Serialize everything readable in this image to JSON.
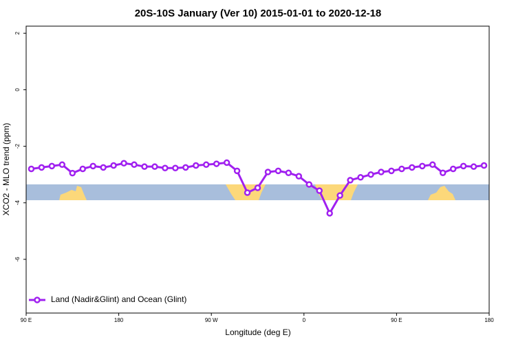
{
  "chart_data": {
    "type": "line",
    "title": "20S-10S January (Ver 10)   2015-01-01 to 2020-12-18",
    "x_label": "Longitude (deg E)",
    "y_label": "XCO2 - MLO trend (ppm)",
    "x": [
      95,
      105,
      115,
      125,
      135,
      145,
      155,
      165,
      175,
      185,
      195,
      205,
      215,
      225,
      235,
      245,
      255,
      265,
      275,
      285,
      295,
      305,
      315,
      325,
      335,
      345,
      355,
      365,
      375,
      385,
      395,
      405,
      415,
      425,
      435,
      445,
      455,
      465,
      475,
      485,
      495,
      505,
      515,
      525,
      535
    ],
    "series": [
      {
        "name": "Land (Nadir&Glint) and Ocean (Glint)",
        "color": "#a020f0",
        "values": [
          -2.8,
          -2.75,
          -2.7,
          -2.65,
          -2.95,
          -2.8,
          -2.7,
          -2.75,
          -2.68,
          -2.6,
          -2.65,
          -2.72,
          -2.72,
          -2.77,
          -2.77,
          -2.75,
          -2.68,
          -2.65,
          -2.62,
          -2.58,
          -2.87,
          -3.64,
          -3.47,
          -2.91,
          -2.87,
          -2.94,
          -3.06,
          -3.35,
          -3.57,
          -4.37,
          -3.74,
          -3.2,
          -3.1,
          -3.0,
          -2.91,
          -2.87,
          -2.8,
          -2.75,
          -2.7,
          -2.65,
          -2.94,
          -2.8,
          -2.7,
          -2.72,
          -2.68
        ]
      }
    ],
    "xlim": [
      90,
      540
    ],
    "xticks": [
      {
        "value": 90,
        "label": "90 E"
      },
      180,
      {
        "value": 270,
        "label": "90 W"
      },
      {
        "value": 360,
        "label": "0"
      },
      {
        "value": 450,
        "label": "90 E"
      },
      {
        "value": 540,
        "label": "180"
      }
    ],
    "ylim": [
      -7.9,
      2.25
    ],
    "yticks": [
      -6,
      -4,
      -2,
      0,
      2
    ],
    "legend": "bottomleft"
  }
}
